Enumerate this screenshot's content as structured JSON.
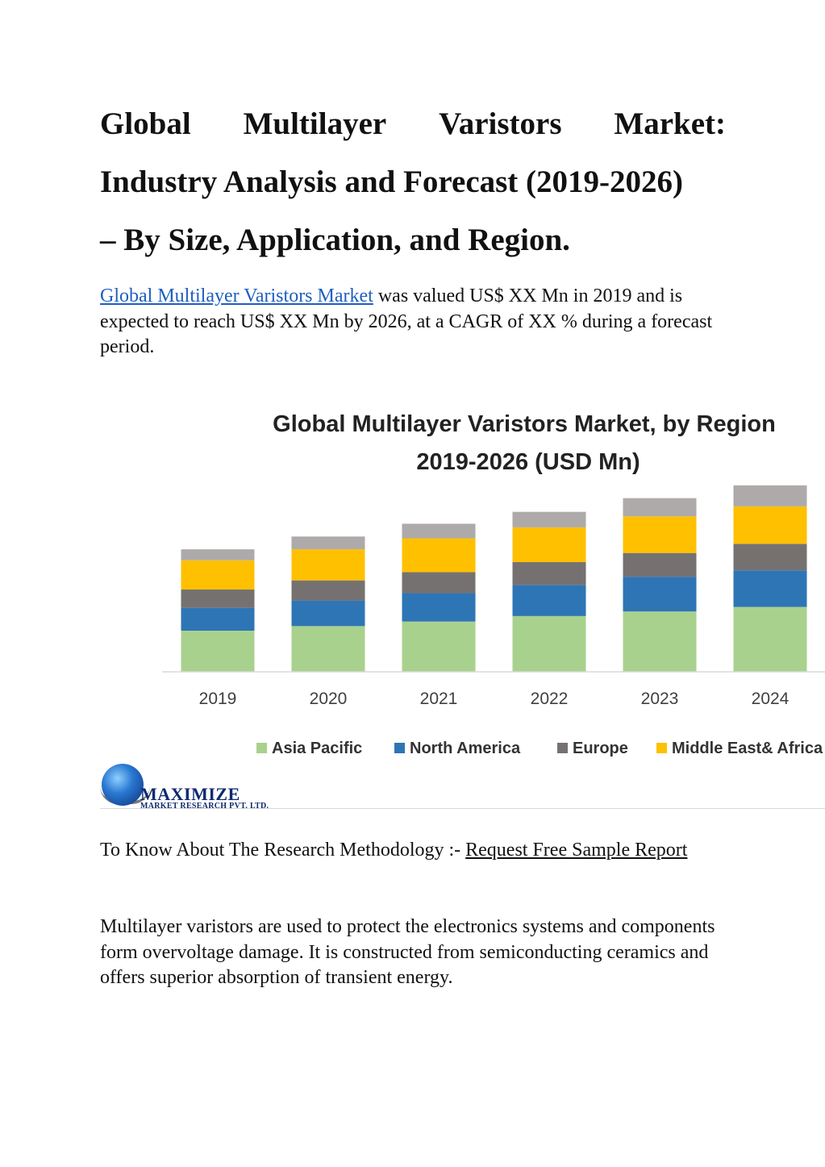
{
  "heading": {
    "line1_words": [
      "Global",
      "Multilayer",
      "Varistors",
      "Market:"
    ],
    "line2": "Industry Analysis and Forecast (2019-2026)",
    "line3": "– By Size, Application, and Region."
  },
  "intro": {
    "link_text": "Global Multilayer Varistors Market",
    "text": " was valued US$ XX Mn in 2019 and is expected to reach US$ XX Mn by 2026, at a CAGR of XX % during a forecast period."
  },
  "chart_data": {
    "type": "bar",
    "stacked": true,
    "title": "Global Multilayer Varistors Market, by Region",
    "subtitle": "2019-2026 (USD Mn)",
    "categories": [
      "2019",
      "2020",
      "2021",
      "2022",
      "2023",
      "2024"
    ],
    "series": [
      {
        "name": "Asia Pacific",
        "color": "#a9d18e",
        "values": [
          45,
          50,
          55,
          61,
          66,
          71
        ]
      },
      {
        "name": "North America",
        "color": "#2e75b6",
        "values": [
          25,
          28,
          31,
          34,
          38,
          40
        ]
      },
      {
        "name": "Europe",
        "color": "#767171",
        "values": [
          20,
          22,
          23,
          25,
          26,
          29
        ]
      },
      {
        "name": "Middle East& Africa",
        "color": "#ffc000",
        "values": [
          32,
          34,
          37,
          38,
          40,
          41
        ]
      },
      {
        "name": "",
        "color": "#aeaaaa",
        "values": [
          12,
          14,
          16,
          17,
          20,
          23
        ]
      }
    ],
    "ylim": [
      0,
      210
    ],
    "grid": false,
    "legend_position": "bottom",
    "xlabel": "",
    "ylabel": ""
  },
  "logo": {
    "name": "MAXIMIZE",
    "sub": "MARKET RESEARCH PVT. LTD."
  },
  "methodology": {
    "prefix": "To Know About The Research Methodology :- ",
    "link_text": "Request Free Sample Report"
  },
  "body_text": "Multilayer varistors are used to protect the electronics systems and components form overvoltage damage. It is constructed from semiconducting ceramics and offers superior absorption of transient energy."
}
